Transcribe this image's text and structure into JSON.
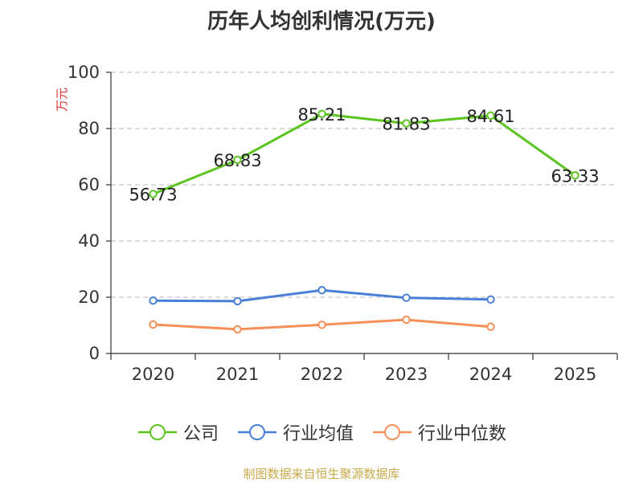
{
  "chart_data": {
    "type": "line",
    "title": "历年人均创利情况(万元)",
    "ylabel": "万元",
    "xlabel": "",
    "categories": [
      "2020",
      "2021",
      "2022",
      "2023",
      "2024",
      "2025"
    ],
    "ylim": [
      0,
      100
    ],
    "yticks": [
      0,
      20,
      40,
      60,
      80,
      100
    ],
    "grid": true,
    "legend_position": "bottom",
    "series": [
      {
        "name": "公司",
        "color": "#5cc421",
        "labels": true,
        "values": [
          56.73,
          68.83,
          85.21,
          81.83,
          84.61,
          63.33
        ]
      },
      {
        "name": "行业均值",
        "color": "#4a7fd8",
        "labels": false,
        "values": [
          18.8,
          18.6,
          22.5,
          19.8,
          19.2,
          null
        ]
      },
      {
        "name": "行业中位数",
        "color": "#f78f57",
        "labels": false,
        "values": [
          10.3,
          8.6,
          10.2,
          12.0,
          9.5,
          null
        ]
      }
    ]
  },
  "source_note": "制图数据来自恒生聚源数据库"
}
